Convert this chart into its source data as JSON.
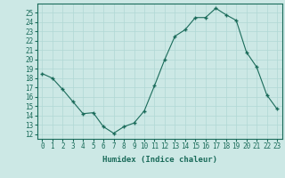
{
  "x": [
    0,
    1,
    2,
    3,
    4,
    5,
    6,
    7,
    8,
    9,
    10,
    11,
    12,
    13,
    14,
    15,
    16,
    17,
    18,
    19,
    20,
    21,
    22,
    23
  ],
  "y": [
    18.5,
    18.0,
    16.8,
    15.5,
    14.2,
    14.3,
    12.8,
    12.1,
    12.8,
    13.2,
    14.5,
    17.2,
    20.0,
    22.5,
    23.2,
    24.5,
    24.5,
    25.5,
    24.8,
    24.2,
    20.8,
    19.2,
    16.2,
    14.7
  ],
  "line_color": "#1a6b5a",
  "marker_color": "#1a6b5a",
  "bg_color": "#cce8e5",
  "grid_color": "#b0d8d4",
  "xlabel": "Humidex (Indice chaleur)",
  "xlim": [
    -0.5,
    23.5
  ],
  "ylim": [
    11.5,
    26
  ],
  "yticks": [
    12,
    13,
    14,
    15,
    16,
    17,
    18,
    19,
    20,
    21,
    22,
    23,
    24,
    25
  ],
  "xticks": [
    0,
    1,
    2,
    3,
    4,
    5,
    6,
    7,
    8,
    9,
    10,
    11,
    12,
    13,
    14,
    15,
    16,
    17,
    18,
    19,
    20,
    21,
    22,
    23
  ],
  "label_fontsize": 5.5,
  "xlabel_fontsize": 6.5
}
